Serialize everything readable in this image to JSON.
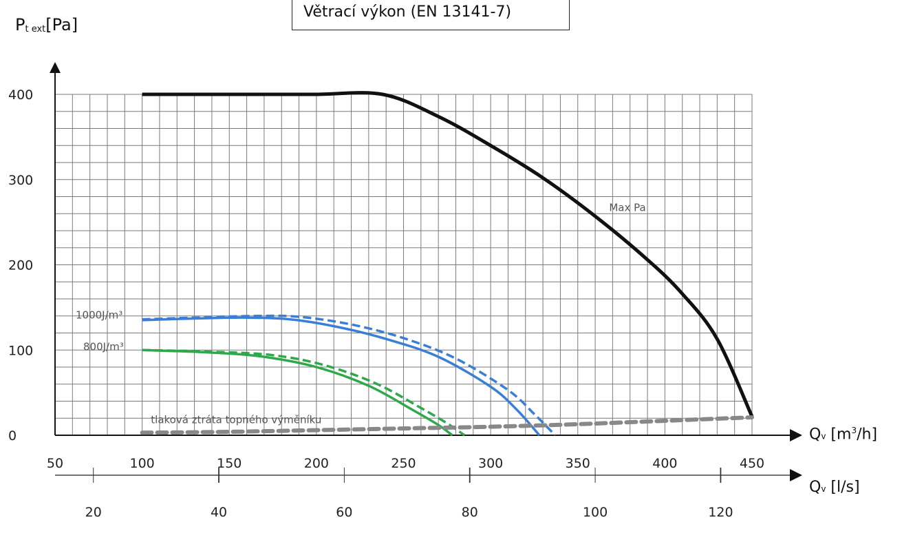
{
  "title": "Větrací výkon (EN 13141-7)",
  "ylabel_main": "P",
  "ylabel_sub": "t ext",
  "ylabel_unit": "[Pa]",
  "x_axis_m3h": {
    "prefix": "Q",
    "sub": "v",
    "unit_a": " [m",
    "unit_sup": "3",
    "unit_b": "/h]"
  },
  "x_axis_ls": {
    "prefix": "Q",
    "sub": "v",
    "unit": " [l/s]"
  },
  "chart_data": {
    "type": "line",
    "title": "Větrací výkon (EN 13141-7)",
    "ylabel": "Pt ext[Pa]",
    "xlabel": "Qv [m3/h]",
    "xlabel_secondary": "Qv [l/s]",
    "xlim": [
      50,
      450
    ],
    "ylim": [
      0,
      400
    ],
    "x_ticks": [
      50,
      100,
      150,
      200,
      250,
      300,
      350,
      400,
      450
    ],
    "y_ticks": [
      0,
      100,
      200,
      300,
      400
    ],
    "secondary_ticks": [
      20,
      40,
      60,
      80,
      100,
      120
    ],
    "grid": true,
    "series": [
      {
        "name": "Max Pa",
        "color": "#111111",
        "dash": false,
        "x": [
          100,
          160,
          200,
          238,
          270,
          300,
          330,
          360,
          390,
          410,
          430,
          450
        ],
        "y": [
          400,
          400,
          400,
          400,
          374,
          340,
          302,
          257,
          206,
          166,
          113,
          22
        ]
      },
      {
        "name": "1000J/m³",
        "color": "#3a7fd5",
        "dash": false,
        "x": [
          100,
          130,
          160,
          185,
          210,
          240,
          270,
          300,
          315,
          328
        ],
        "y": [
          135,
          137,
          138,
          136,
          128,
          113,
          92,
          57,
          30,
          0
        ]
      },
      {
        "name": "",
        "color": "#3a7fd5",
        "dash": true,
        "x": [
          100,
          130,
          165,
          190,
          220,
          250,
          280,
          310,
          325,
          337
        ],
        "y": [
          136,
          138,
          140,
          139,
          130,
          114,
          90,
          53,
          25,
          0
        ]
      },
      {
        "name": "800J/m³",
        "color": "#2ea84a",
        "dash": false,
        "x": [
          100,
          140,
          170,
          200,
          230,
          255,
          270,
          278
        ],
        "y": [
          100,
          97,
          92,
          80,
          58,
          30,
          12,
          0
        ]
      },
      {
        "name": "",
        "color": "#2ea84a",
        "dash": true,
        "x": [
          100,
          140,
          175,
          205,
          235,
          260,
          275,
          285
        ],
        "y": [
          100,
          98,
          94,
          82,
          60,
          32,
          14,
          0
        ]
      },
      {
        "name": "tlaková ztráta topného výměníku",
        "color": "#888888",
        "dash": true,
        "x": [
          100,
          150,
          200,
          250,
          300,
          350,
          400,
          450
        ],
        "y": [
          3,
          4,
          6,
          8,
          10,
          13,
          17,
          21
        ]
      }
    ]
  }
}
